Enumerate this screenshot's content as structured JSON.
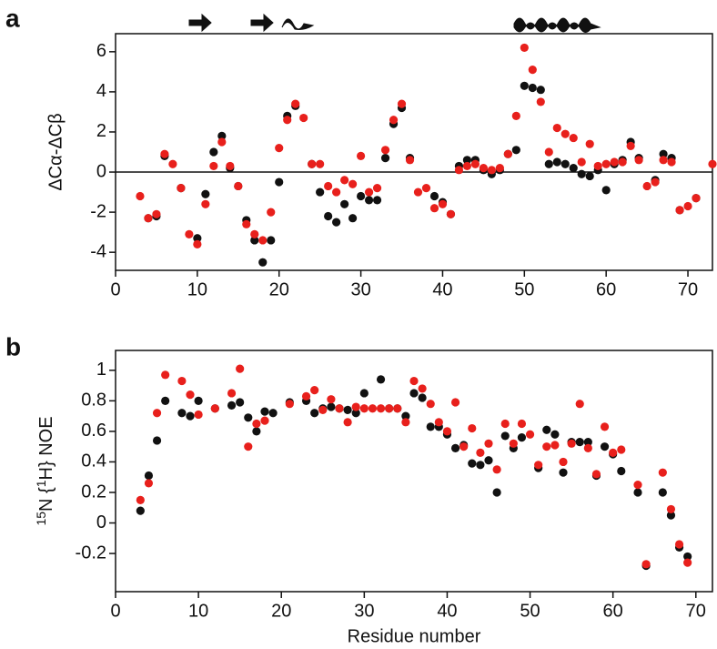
{
  "chart_data": [
    {
      "type": "scatter",
      "panel_label": "a",
      "ylabel": "ΔCα-ΔCβ",
      "xlim": [
        0,
        73
      ],
      "ylim": [
        -4.9,
        6.9
      ],
      "xticks": [
        0,
        10,
        20,
        30,
        40,
        50,
        60,
        70
      ],
      "yticks": [
        -4,
        -2,
        0,
        2,
        4,
        6
      ],
      "hline": 0,
      "series": [
        {
          "color": "#111111",
          "x": [
            4,
            5,
            6,
            8,
            10,
            11,
            12,
            13,
            14,
            15,
            16,
            17,
            18,
            19,
            20,
            21,
            22,
            24,
            25,
            26,
            27,
            28,
            29,
            30,
            31,
            32,
            33,
            34,
            35,
            36,
            39,
            40,
            41,
            42,
            43,
            44,
            45,
            46,
            47,
            48,
            49,
            50,
            51,
            52,
            53,
            54,
            55,
            56,
            57,
            58,
            59,
            60,
            61,
            62,
            63,
            64,
            66,
            67,
            68,
            69,
            71
          ],
          "values": [
            -2.3,
            -2.2,
            0.8,
            -0.8,
            -3.3,
            -1.1,
            1.0,
            1.8,
            0.2,
            -0.7,
            -2.4,
            -3.4,
            -4.5,
            -3.4,
            -0.5,
            2.8,
            3.3,
            0.4,
            -1.0,
            -2.2,
            -2.5,
            -1.6,
            -2.3,
            -1.2,
            -1.4,
            -1.4,
            0.7,
            2.4,
            3.2,
            0.7,
            -1.2,
            -1.5,
            -2.1,
            0.3,
            0.6,
            0.6,
            0.1,
            -0.1,
            0.1,
            0.9,
            1.1,
            4.3,
            4.2,
            4.1,
            0.4,
            0.5,
            0.4,
            0.2,
            -0.1,
            -0.2,
            0.1,
            -0.9,
            0.4,
            0.6,
            1.5,
            0.7,
            -0.4,
            0.9,
            0.7,
            -1.9,
            -1.3
          ]
        },
        {
          "color": "#e8201c",
          "x": [
            3,
            4,
            5,
            6,
            7,
            8,
            9,
            10,
            11,
            12,
            13,
            14,
            15,
            16,
            17,
            18,
            19,
            20,
            21,
            22,
            23,
            24,
            25,
            26,
            27,
            28,
            29,
            30,
            31,
            32,
            33,
            34,
            35,
            36,
            37,
            38,
            39,
            40,
            41,
            42,
            43,
            44,
            45,
            46,
            47,
            48,
            49,
            50,
            51,
            52,
            53,
            54,
            55,
            56,
            57,
            58,
            59,
            60,
            61,
            62,
            63,
            64,
            65,
            66,
            67,
            68,
            69,
            70,
            71,
            73
          ],
          "values": [
            -1.2,
            -2.3,
            -2.1,
            0.9,
            0.4,
            -0.8,
            -3.1,
            -3.6,
            -1.6,
            0.3,
            1.5,
            0.3,
            -0.7,
            -2.6,
            -3.1,
            -3.4,
            -2.0,
            1.2,
            2.6,
            3.4,
            2.7,
            0.4,
            0.4,
            -0.7,
            -1.0,
            -0.4,
            -0.6,
            0.8,
            -1.0,
            -0.8,
            1.1,
            2.6,
            3.4,
            0.6,
            -1.0,
            -0.8,
            -1.8,
            -1.6,
            -2.1,
            0.1,
            0.3,
            0.4,
            0.2,
            0.1,
            0.2,
            0.9,
            2.8,
            6.2,
            5.1,
            3.5,
            1.0,
            2.2,
            1.9,
            1.7,
            0.5,
            1.4,
            0.3,
            0.4,
            0.5,
            0.5,
            1.3,
            0.6,
            -0.7,
            -0.5,
            0.6,
            0.5,
            -1.9,
            -1.7,
            -1.3,
            0.4
          ]
        }
      ]
    },
    {
      "type": "scatter",
      "panel_label": "b",
      "ylabel": [
        "15",
        "N {",
        "1",
        "H} NOE"
      ],
      "xlabel": "Residue number",
      "xlim": [
        0,
        72
      ],
      "ylim": [
        -0.45,
        1.13
      ],
      "xticks": [
        0,
        10,
        20,
        30,
        40,
        50,
        60,
        70
      ],
      "yticks": [
        -0.2,
        0,
        0.2,
        0.4,
        0.6,
        0.8,
        1
      ],
      "series": [
        {
          "color": "#111111",
          "x": [
            3,
            4,
            5,
            6,
            8,
            9,
            10,
            12,
            14,
            15,
            16,
            17,
            18,
            19,
            21,
            23,
            24,
            25,
            26,
            27,
            28,
            29,
            30,
            32,
            33,
            34,
            35,
            36,
            37,
            38,
            39,
            40,
            41,
            42,
            43,
            44,
            45,
            46,
            47,
            48,
            49,
            51,
            52,
            53,
            54,
            55,
            56,
            57,
            58,
            59,
            60,
            61,
            63,
            64,
            66,
            67,
            68,
            69
          ],
          "values": [
            0.08,
            0.31,
            0.54,
            0.8,
            0.72,
            0.7,
            0.8,
            0.75,
            0.77,
            0.79,
            0.69,
            0.6,
            0.73,
            0.72,
            0.79,
            0.8,
            0.72,
            0.75,
            0.76,
            0.75,
            0.74,
            0.72,
            0.85,
            0.94,
            0.75,
            0.75,
            0.7,
            0.85,
            0.82,
            0.63,
            0.63,
            0.58,
            0.49,
            0.51,
            0.39,
            0.38,
            0.41,
            0.2,
            0.57,
            0.49,
            0.56,
            0.36,
            0.61,
            0.58,
            0.33,
            0.53,
            0.53,
            0.53,
            0.31,
            0.5,
            0.45,
            0.34,
            0.2,
            -0.28,
            0.2,
            0.05,
            -0.16,
            -0.22
          ]
        },
        {
          "color": "#e8201c",
          "x": [
            3,
            4,
            5,
            6,
            8,
            9,
            10,
            12,
            14,
            15,
            16,
            17,
            18,
            21,
            23,
            24,
            25,
            26,
            27,
            28,
            29,
            30,
            31,
            32,
            33,
            34,
            35,
            36,
            37,
            38,
            39,
            40,
            41,
            42,
            43,
            44,
            45,
            46,
            47,
            48,
            49,
            50,
            51,
            52,
            53,
            54,
            55,
            56,
            57,
            58,
            59,
            60,
            61,
            63,
            64,
            66,
            67,
            68,
            69
          ],
          "values": [
            0.15,
            0.26,
            0.72,
            0.97,
            0.93,
            0.84,
            0.71,
            0.75,
            0.85,
            1.01,
            0.5,
            0.65,
            0.67,
            0.78,
            0.83,
            0.87,
            0.74,
            0.81,
            0.75,
            0.66,
            0.76,
            0.75,
            0.75,
            0.75,
            0.75,
            0.75,
            0.66,
            0.93,
            0.88,
            0.78,
            0.66,
            0.6,
            0.79,
            0.5,
            0.62,
            0.46,
            0.52,
            0.35,
            0.65,
            0.52,
            0.65,
            0.58,
            0.38,
            0.5,
            0.51,
            0.4,
            0.52,
            0.78,
            0.49,
            0.32,
            0.63,
            0.46,
            0.48,
            0.25,
            -0.27,
            0.33,
            0.09,
            -0.14,
            -0.26
          ]
        }
      ]
    }
  ]
}
